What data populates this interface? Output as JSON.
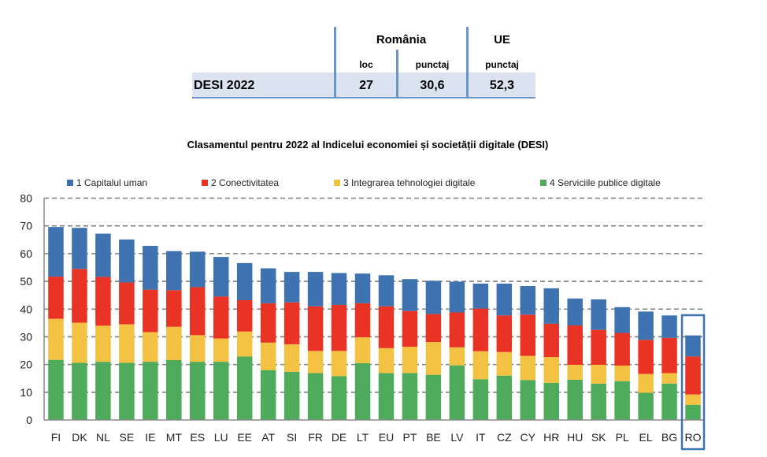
{
  "summary_table": {
    "col_group_romania": "România",
    "col_group_ue": "UE",
    "sub_loc": "loc",
    "sub_punctaj_ro": "punctaj",
    "sub_punctaj_ue": "punctaj",
    "row_label": "DESI 2022",
    "ro_rank": "27",
    "ro_score": "30,6",
    "ue_score": "52,3"
  },
  "colors": {
    "series1": "#3f72b0",
    "series2": "#e93324",
    "series3": "#f3c243",
    "series4": "#4eab5c",
    "table_band": "#dbe3f1",
    "table_line": "#6b95c8",
    "highlight_box": "#3f72b0",
    "grid": "#7f7f7f"
  },
  "chart_data": {
    "type": "bar",
    "stacked": true,
    "title": "Clasamentul pentru 2022 al Indicelui economiei și societății digitale (DESI)",
    "xlabel": "",
    "ylabel": "",
    "ylim": [
      0,
      80
    ],
    "yticks": [
      "0",
      "10",
      "20",
      "30",
      "40",
      "50",
      "60",
      "70",
      "80"
    ],
    "grid": true,
    "legend_position": "top",
    "highlighted_category": "RO",
    "categories": [
      "FI",
      "DK",
      "NL",
      "SE",
      "IE",
      "MT",
      "ES",
      "LU",
      "EE",
      "AT",
      "SI",
      "FR",
      "DE",
      "LT",
      "EU",
      "PT",
      "BE",
      "LV",
      "IT",
      "CZ",
      "CY",
      "HR",
      "HU",
      "SK",
      "PL",
      "EL",
      "BG",
      "RO"
    ],
    "series": [
      {
        "name": "4 Serviciile publice digitale",
        "key": "series4",
        "values": [
          21.7,
          20.6,
          21.0,
          20.6,
          21.0,
          21.6,
          21.0,
          21.0,
          22.9,
          18.0,
          17.4,
          16.9,
          15.8,
          20.5,
          16.9,
          16.9,
          16.3,
          19.7,
          14.7,
          16.0,
          14.4,
          13.4,
          14.5,
          13.1,
          14.0,
          9.8,
          13.1,
          5.4
        ]
      },
      {
        "name": "3 Integrarea tehnologiei digitale",
        "key": "series3",
        "values": [
          14.8,
          14.5,
          13.0,
          13.9,
          10.7,
          12.0,
          9.6,
          8.4,
          9.0,
          9.9,
          9.9,
          8.0,
          9.1,
          9.3,
          9.0,
          9.5,
          11.8,
          6.5,
          10.1,
          8.5,
          8.7,
          9.3,
          5.4,
          6.8,
          5.6,
          6.8,
          3.8,
          3.8
        ]
      },
      {
        "name": "2 Conectivitatea",
        "key": "series2",
        "values": [
          15.2,
          19.4,
          17.6,
          15.1,
          15.3,
          13.2,
          17.3,
          15.1,
          11.3,
          14.2,
          15.1,
          16.1,
          16.6,
          12.3,
          15.1,
          12.9,
          10.1,
          12.6,
          15.4,
          13.2,
          14.9,
          12.0,
          14.2,
          12.6,
          11.8,
          12.3,
          12.7,
          13.7
        ]
      },
      {
        "name": "1 Capitalul uman",
        "key": "series1",
        "values": [
          17.9,
          14.8,
          15.6,
          15.5,
          15.8,
          14.1,
          12.8,
          14.3,
          13.4,
          12.6,
          11.0,
          12.4,
          11.5,
          10.7,
          11.2,
          11.5,
          12.0,
          11.1,
          9.0,
          11.5,
          10.3,
          12.8,
          9.7,
          11.0,
          9.3,
          10.2,
          8.1,
          7.6
        ]
      }
    ],
    "legend": [
      "1 Capitalul uman",
      "2 Conectivitatea",
      "3 Integrarea tehnologiei digitale",
      "4 Serviciile publice digitale"
    ]
  }
}
